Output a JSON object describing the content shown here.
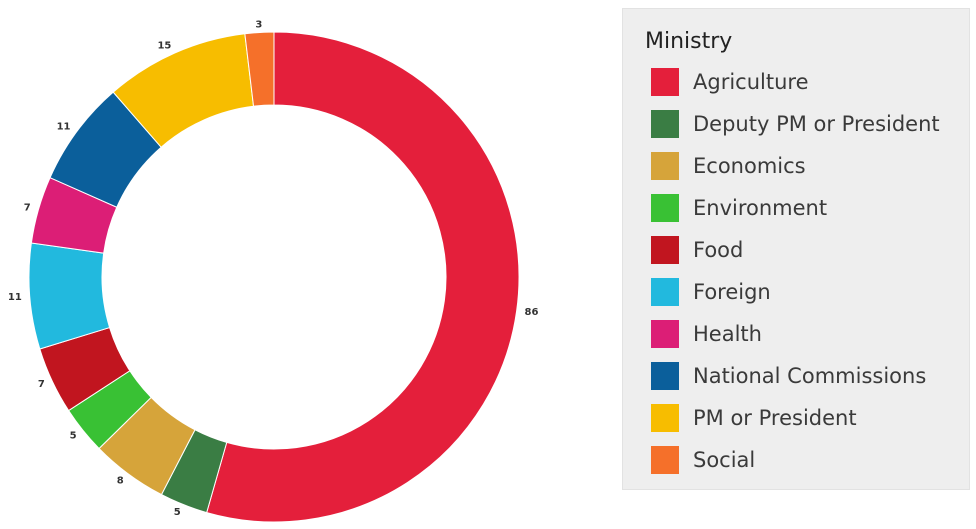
{
  "chart_data": {
    "type": "pie",
    "variant": "donut",
    "categories": [
      "Agriculture",
      "Deputy PM or President",
      "Economics",
      "Environment",
      "Food",
      "Foreign",
      "Health",
      "National Commissions",
      "PM or President",
      "Social"
    ],
    "values": [
      86,
      5,
      8,
      5,
      7,
      11,
      7,
      11,
      15,
      3
    ],
    "colors": [
      "#e41f3b",
      "#3a7d44",
      "#d6a43a",
      "#39c134",
      "#c1151f",
      "#22b9de",
      "#dc1e76",
      "#0b5f9b",
      "#f7bd00",
      "#f5702a"
    ],
    "legend_title": "Ministry",
    "legend_position": "right"
  }
}
